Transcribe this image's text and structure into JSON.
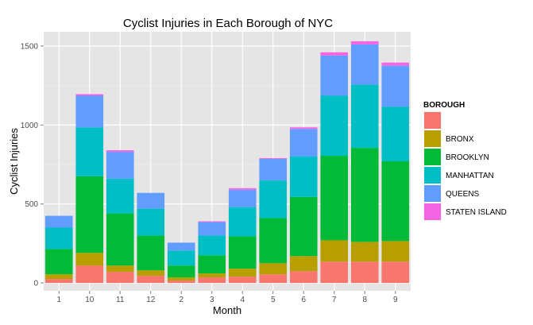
{
  "chart_data": {
    "type": "bar",
    "stacked": true,
    "title": "Cyclist Injuries in Each Borough of NYC",
    "xlabel": "Month",
    "ylabel": "Cyclist Injuries",
    "categories": [
      "1",
      "10",
      "11",
      "12",
      "2",
      "3",
      "4",
      "5",
      "6",
      "7",
      "8",
      "9"
    ],
    "ylim": [
      -50,
      1590
    ],
    "yticks": [
      0,
      500,
      1000,
      1500
    ],
    "grid": true,
    "legend": {
      "title": "BOROUGH",
      "position": "right"
    },
    "series": [
      {
        "name": "",
        "color": "#F8766D",
        "values": [
          25,
          110,
          70,
          45,
          15,
          35,
          40,
          55,
          75,
          135,
          135,
          135
        ]
      },
      {
        "name": "BRONX",
        "color": "#B79F00",
        "values": [
          30,
          80,
          40,
          35,
          20,
          25,
          50,
          70,
          95,
          135,
          125,
          130
        ]
      },
      {
        "name": "BROOKLYN",
        "color": "#00BA38",
        "values": [
          160,
          485,
          330,
          220,
          75,
          115,
          205,
          285,
          375,
          535,
          595,
          505
        ]
      },
      {
        "name": "MANHATTAN",
        "color": "#00BFC4",
        "values": [
          135,
          310,
          220,
          170,
          95,
          125,
          185,
          240,
          255,
          380,
          400,
          345
        ]
      },
      {
        "name": "QUEENS",
        "color": "#619CFF",
        "values": [
          75,
          200,
          170,
          100,
          50,
          85,
          110,
          135,
          175,
          255,
          255,
          260
        ]
      },
      {
        "name": "STATEN ISLAND",
        "color": "#F564E3",
        "values": [
          0,
          10,
          10,
          0,
          0,
          5,
          10,
          5,
          10,
          20,
          20,
          20
        ]
      }
    ]
  }
}
